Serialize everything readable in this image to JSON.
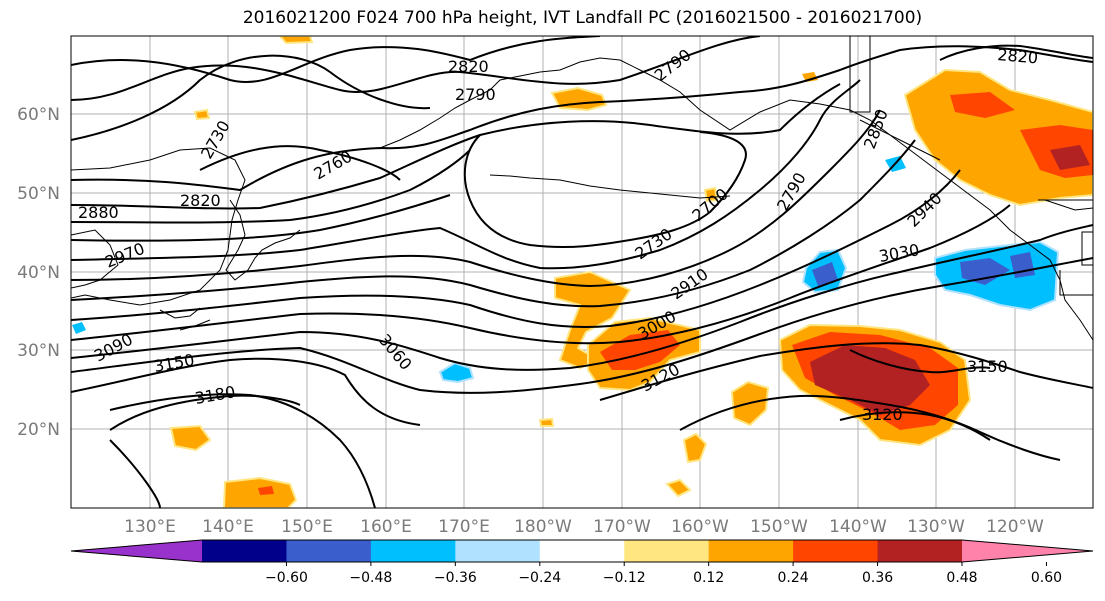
{
  "title": "2016021200 F024 700 hPa height, IVT Landfall PC (2016021500 - 2016021700)",
  "map": {
    "lat_labels": [
      "60°N",
      "50°N",
      "40°N",
      "30°N",
      "20°N"
    ],
    "lon_labels": [
      "130°E",
      "140°E",
      "150°E",
      "160°E",
      "170°E",
      "180°W",
      "170°W",
      "160°W",
      "150°W",
      "140°W",
      "130°W",
      "120°W"
    ],
    "contour_labels": [
      "2820",
      "2790",
      "2790",
      "2730",
      "2760",
      "2880",
      "2820",
      "2970",
      "3090",
      "3150",
      "3180",
      "3060",
      "2730",
      "2700",
      "2910",
      "3000",
      "3120",
      "2790",
      "2850",
      "2940",
      "3030",
      "3150",
      "3120",
      "2820"
    ],
    "colors": {
      "neg_060": "#9932cc",
      "neg_048": "#00008b",
      "neg_036": "#3a5fcd",
      "neg_024": "#00bfff",
      "neg_012": "#b0e2ff",
      "zero": "#ffffff",
      "pos_012": "#ffe680",
      "pos_024": "#ffa500",
      "pos_036": "#ff4500",
      "pos_048": "#b22222",
      "pos_060": "#ff82ab"
    }
  },
  "colorbar": {
    "ticks": [
      "−0.60",
      "−0.48",
      "−0.36",
      "−0.24",
      "−0.12",
      "0.12",
      "0.24",
      "0.36",
      "0.48",
      "0.60"
    ],
    "colors": [
      "#9932cc",
      "#00008b",
      "#3a5fcd",
      "#00bfff",
      "#b0e2ff",
      "#ffffff",
      "#ffe680",
      "#ffa500",
      "#ff4500",
      "#b22222",
      "#ff82ab"
    ]
  }
}
